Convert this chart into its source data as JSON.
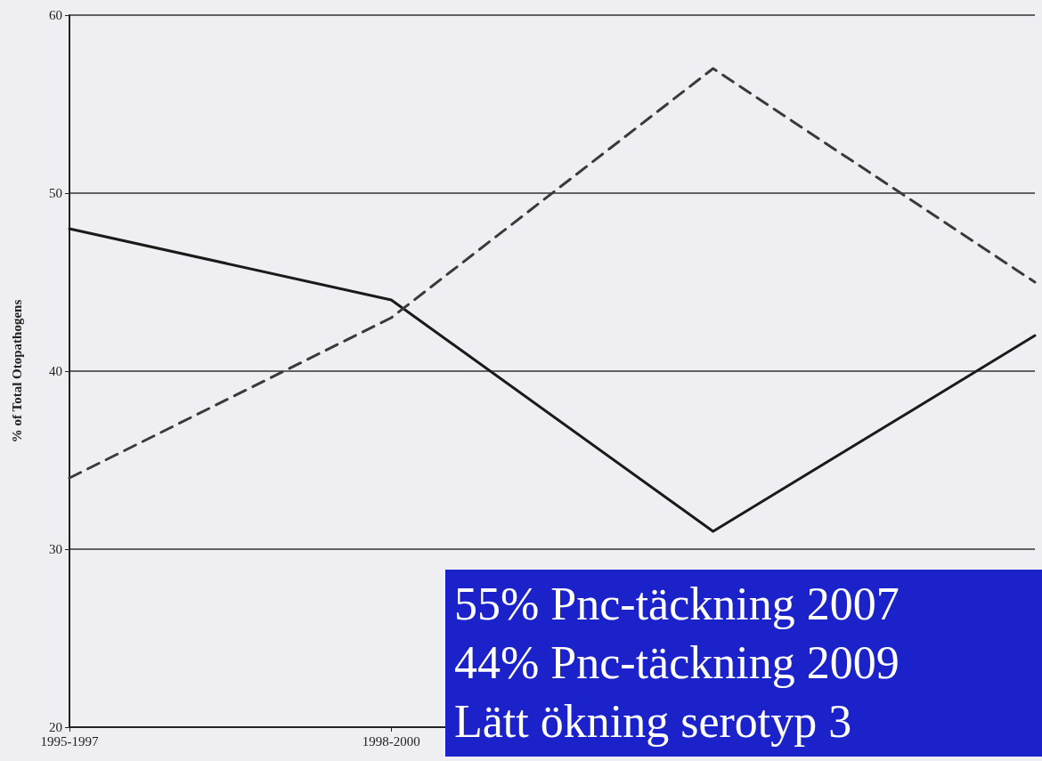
{
  "chart_data": {
    "type": "line",
    "ylabel": "% of Total Otopathogens",
    "categories": [
      "1995-1997",
      "1998-2000",
      null,
      null
    ],
    "series": [
      {
        "color": "#1a1a1a",
        "values": [
          48,
          44,
          31,
          42
        ],
        "line_style": "solid"
      },
      {
        "color": "#3a3a3a",
        "values": [
          34,
          43,
          57,
          45
        ],
        "line_style": "dashed"
      }
    ],
    "ylim": [
      20,
      60
    ],
    "yticks": [
      20,
      30,
      40,
      50,
      60
    ],
    "grid": "y",
    "marker": "none",
    "annotations": [
      "55% Pnc-täckning 2007",
      "44% Pnc-täckning 2009",
      "Lätt ökning serotyp 3"
    ]
  }
}
